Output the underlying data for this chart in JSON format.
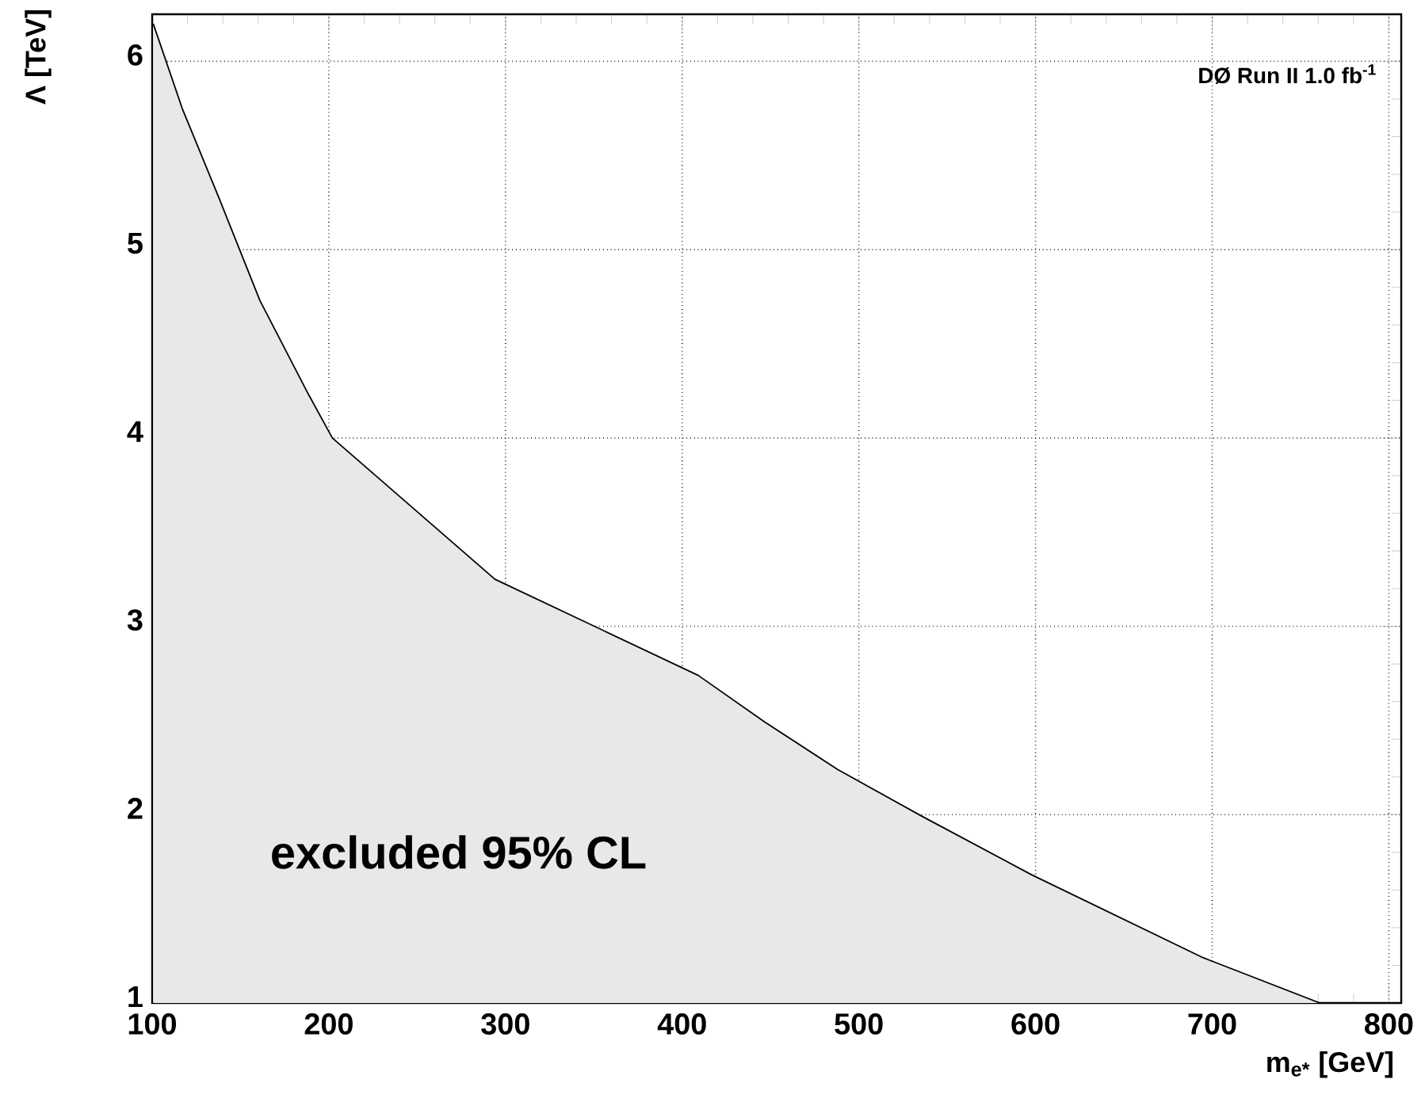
{
  "chart_data": {
    "type": "area",
    "xlabel": "m$_{e*}$ [GeV]",
    "ylabel": "Λ [TeV]",
    "annotations": [
      "DØ Run II 1.0 fb$^{-1}$",
      "excluded 95% CL"
    ],
    "x": [
      100.6,
      117,
      138,
      161,
      188,
      202,
      294,
      409,
      447,
      488,
      536,
      598,
      695,
      761
    ],
    "series": [
      {
        "color": "#000000",
        "values": [
          6.2,
          5.75,
          5.27,
          4.73,
          4.24,
          4.0,
          3.25,
          2.74,
          2.49,
          2.24,
          1.99,
          1.68,
          1.24,
          1.0
        ]
      }
    ],
    "xlim": [
      100,
      807
    ],
    "ylim": [
      1,
      6.25
    ],
    "xticks": [
      100,
      200,
      300,
      400,
      500,
      600,
      700,
      800
    ],
    "yticks": [
      1,
      2,
      3,
      4,
      5,
      6
    ],
    "grid": true
  }
}
